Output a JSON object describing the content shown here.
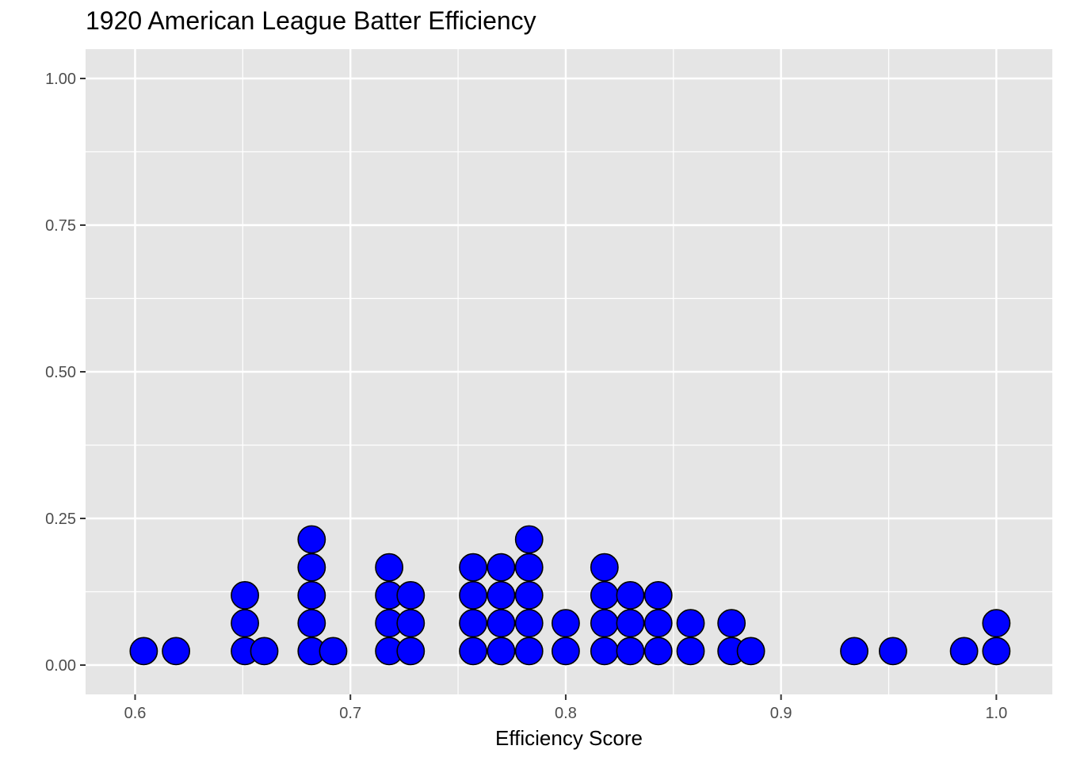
{
  "chart_data": {
    "type": "dotplot",
    "title": "1920 American League Batter Efficiency",
    "xlabel": "Efficiency Score",
    "ylabel": "",
    "xlim": [
      0.577,
      1.026
    ],
    "ylim": [
      -0.05,
      1.05
    ],
    "x_ticks": [
      "0.6",
      "0.7",
      "0.8",
      "0.9",
      "1.0"
    ],
    "x_tick_values": [
      0.6,
      0.7,
      0.8,
      0.9,
      1.0
    ],
    "y_ticks": [
      "0.00",
      "0.25",
      "0.50",
      "0.75",
      "1.00"
    ],
    "y_tick_values": [
      0,
      0.25,
      0.5,
      0.75,
      1.0
    ],
    "stack_step": 0.0476,
    "grid": true,
    "panel_color": "#e5e5e5",
    "grid_color": "#ffffff",
    "dot_fill": "#0000ff",
    "dot_stroke": "#000000",
    "stacks": [
      {
        "x": 0.604,
        "count": 1
      },
      {
        "x": 0.619,
        "count": 1
      },
      {
        "x": 0.651,
        "count": 3
      },
      {
        "x": 0.66,
        "count": 1
      },
      {
        "x": 0.682,
        "count": 5
      },
      {
        "x": 0.692,
        "count": 1
      },
      {
        "x": 0.718,
        "count": 4
      },
      {
        "x": 0.728,
        "count": 3
      },
      {
        "x": 0.757,
        "count": 4
      },
      {
        "x": 0.77,
        "count": 4
      },
      {
        "x": 0.783,
        "count": 5
      },
      {
        "x": 0.8,
        "count": 2
      },
      {
        "x": 0.818,
        "count": 4
      },
      {
        "x": 0.83,
        "count": 3
      },
      {
        "x": 0.843,
        "count": 3
      },
      {
        "x": 0.858,
        "count": 2
      },
      {
        "x": 0.877,
        "count": 2
      },
      {
        "x": 0.886,
        "count": 1
      },
      {
        "x": 0.934,
        "count": 1
      },
      {
        "x": 0.952,
        "count": 1
      },
      {
        "x": 0.985,
        "count": 1
      },
      {
        "x": 1.0,
        "count": 2
      }
    ]
  }
}
